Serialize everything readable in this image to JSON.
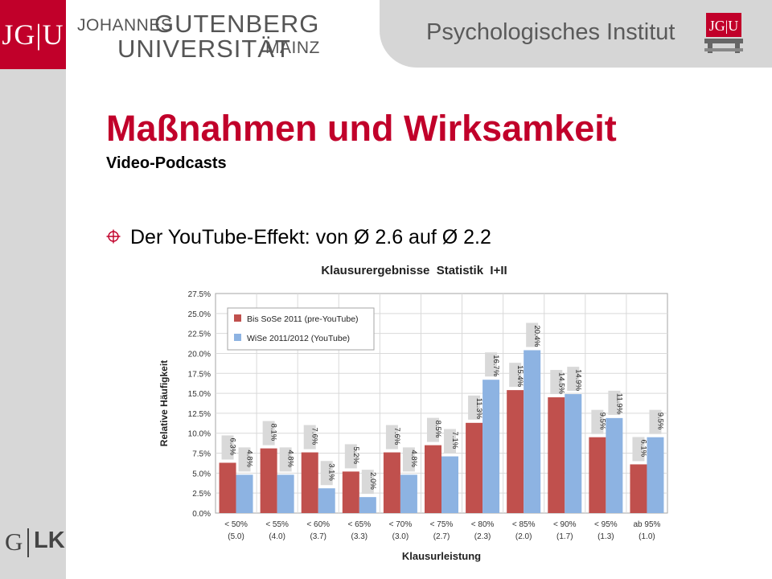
{
  "header": {
    "logo_text": "JG|U",
    "uni_line1_prefix": "JOHANNES",
    "uni_line1_main": "GUTENBERG",
    "uni_line2_main": "UNIVERSITÄT",
    "uni_line2_suffix": "MAINZ",
    "institute": "Psychologisches Institut",
    "institute_logo_text": "JG|U"
  },
  "slide": {
    "title": "Maßnahmen und Wirksamkeit",
    "subtitle": "Video-Podcasts",
    "bullet": "Der YouTube-Effekt:  von Ø 2.6 auf Ø 2.2"
  },
  "footer": {
    "logo_g": "G",
    "logo_lk": "LK"
  },
  "colors": {
    "brand": "#c1002a",
    "series1": "#c0504d",
    "series2": "#8db3e2"
  },
  "chart_data": {
    "type": "bar",
    "title": "Klausurergebnisse  Statistik  I+II",
    "xlabel": "Klausurleistung",
    "ylabel": "Relative Häufigkeit",
    "ylim": [
      0,
      27.5
    ],
    "yticks": [
      "0.0%",
      "2.5%",
      "5.0%",
      "7.5%",
      "10.0%",
      "12.5%",
      "15.0%",
      "17.5%",
      "20.0%",
      "22.5%",
      "25.0%",
      "27.5%"
    ],
    "grid": true,
    "legend_position": "top-left",
    "categories": [
      {
        "line1": "< 50%",
        "line2": "(5.0)"
      },
      {
        "line1": "< 55%",
        "line2": "(4.0)"
      },
      {
        "line1": "< 60%",
        "line2": "(3.7)"
      },
      {
        "line1": "< 65%",
        "line2": "(3.3)"
      },
      {
        "line1": "< 70%",
        "line2": "(3.0)"
      },
      {
        "line1": "< 75%",
        "line2": "(2.7)"
      },
      {
        "line1": "< 80%",
        "line2": "(2.3)"
      },
      {
        "line1": "< 85%",
        "line2": "(2.0)"
      },
      {
        "line1": "< 90%",
        "line2": "(1.7)"
      },
      {
        "line1": "< 95%",
        "line2": "(1.3)"
      },
      {
        "line1": "ab 95%",
        "line2": "(1.0)"
      }
    ],
    "series": [
      {
        "name": "Bis SoSe 2011 (pre-YouTube)",
        "color": "#c0504d",
        "values": [
          6.3,
          8.1,
          7.6,
          5.2,
          7.6,
          8.5,
          11.3,
          15.4,
          14.5,
          9.5,
          6.1
        ],
        "labels": [
          "6.3%",
          "8.1%",
          "7.6%",
          "5.2%",
          "7.6%",
          "8.5%",
          "11.3%",
          "15.4%",
          "14.5%",
          "9.5%",
          "6.1%"
        ]
      },
      {
        "name": "WiSe 2011/2012 (YouTube)",
        "color": "#8db3e2",
        "values": [
          4.8,
          4.8,
          3.1,
          2.0,
          4.8,
          7.1,
          16.7,
          20.4,
          14.9,
          11.9,
          9.5
        ],
        "labels": [
          "4.8%",
          "4.8%",
          "3.1%",
          "2.0%",
          "4.8%",
          "7.1%",
          "16.7%",
          "20.4%",
          "14.9%",
          "11.9%",
          "9.5%"
        ]
      }
    ]
  }
}
